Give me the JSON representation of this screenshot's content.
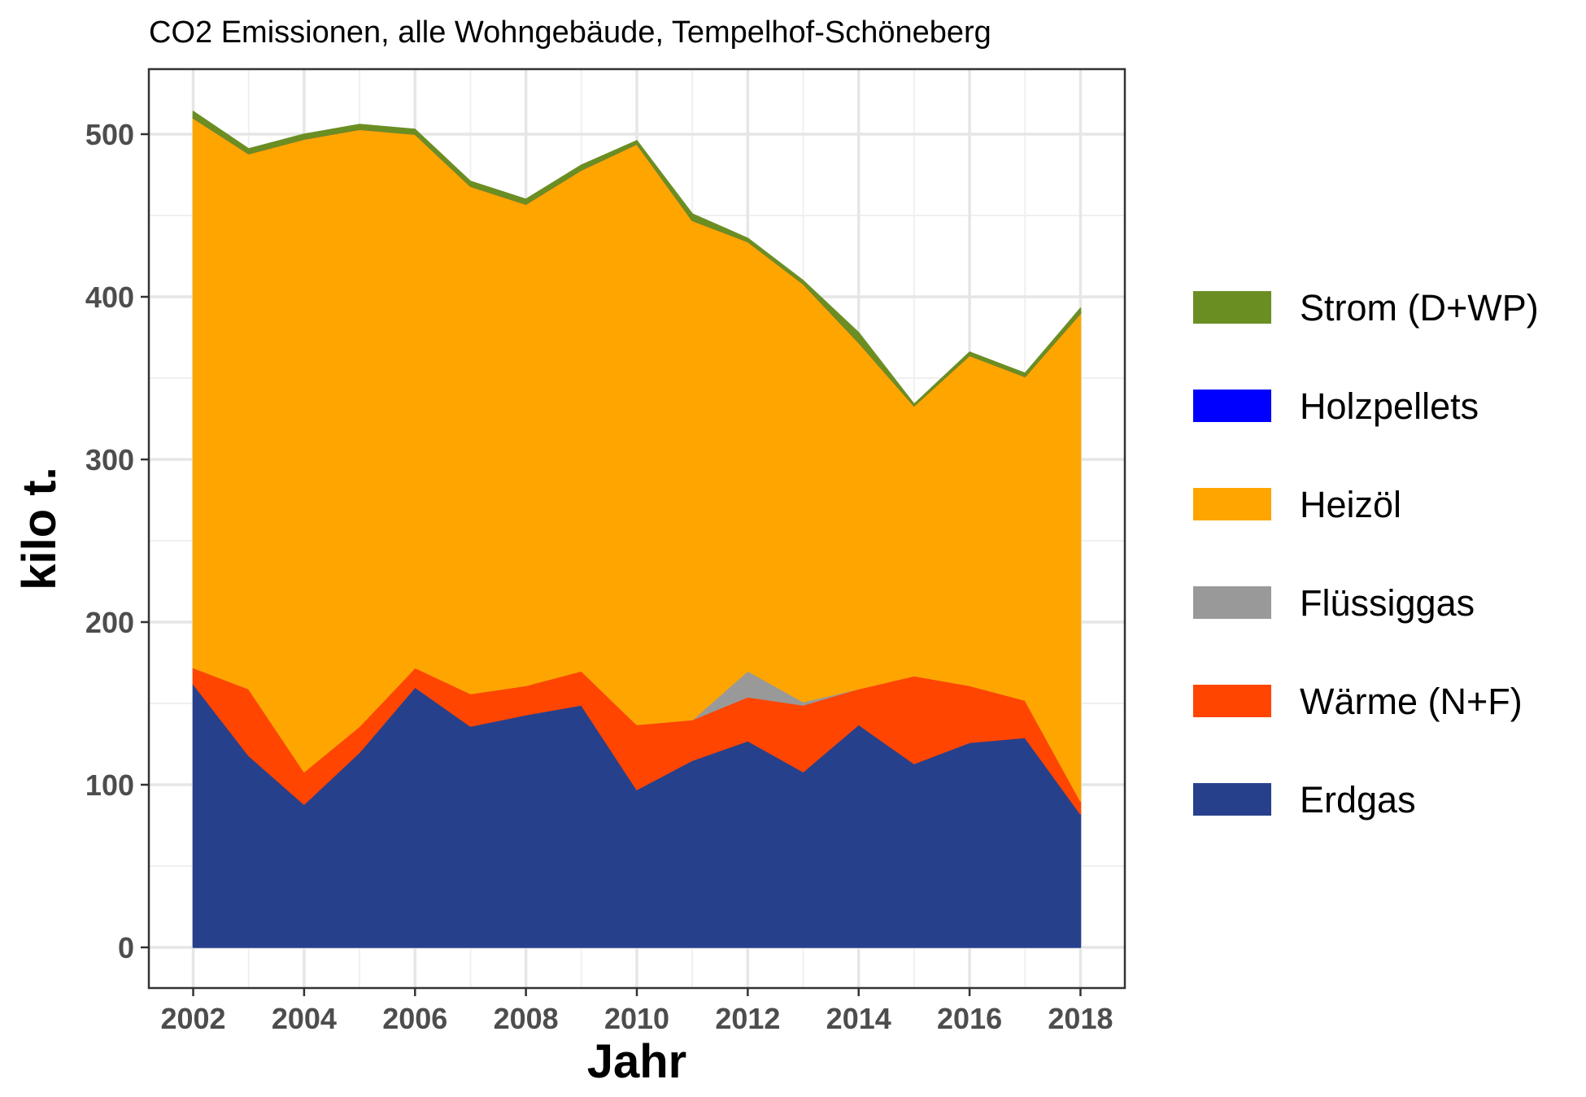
{
  "chart_data": {
    "type": "area",
    "title": "CO2 Emissionen, alle Wohngebäude, Tempelhof-Schöneberg",
    "xlabel": "Jahr",
    "ylabel": "kilo t.",
    "x": [
      2002,
      2003,
      2004,
      2005,
      2006,
      2007,
      2008,
      2009,
      2010,
      2011,
      2012,
      2013,
      2014,
      2015,
      2016,
      2017,
      2018
    ],
    "x_ticks": [
      "2002",
      "2004",
      "2006",
      "2008",
      "2010",
      "2012",
      "2014",
      "2016",
      "2018"
    ],
    "y_ticks": [
      "0",
      "100",
      "200",
      "300",
      "400",
      "500"
    ],
    "ylim": [
      -25,
      540
    ],
    "xlim": [
      2001.2,
      2018.8
    ],
    "grid": true,
    "legend_position": "right",
    "stacking_order": [
      "Erdgas",
      "Wärme (N+F)",
      "Flüssiggas",
      "Heizöl",
      "Holzpellets",
      "Strom (D+WP)"
    ],
    "series": [
      {
        "name": "Strom (D+WP)",
        "color": "#6b8e23",
        "values": [
          4,
          3,
          3,
          3,
          3,
          3,
          3,
          3,
          2,
          4,
          2,
          2,
          6,
          1,
          2,
          2,
          3
        ]
      },
      {
        "name": "Holzpellets",
        "color": "#0000ff",
        "values": [
          0,
          0,
          0,
          0,
          0,
          0,
          0,
          0,
          0,
          0,
          0,
          0,
          0,
          0,
          0,
          0,
          0
        ]
      },
      {
        "name": "Heizöl",
        "color": "#ffa500",
        "values": [
          338,
          329,
          389,
          367,
          328,
          312,
          296,
          308,
          357,
          307,
          264,
          257,
          213,
          166,
          203,
          199,
          300
        ]
      },
      {
        "name": "Flüssiggas",
        "color": "#999999",
        "values": [
          0,
          0,
          0,
          0,
          0,
          0,
          0,
          0,
          0,
          0,
          16,
          2,
          0,
          0,
          0,
          0,
          0
        ]
      },
      {
        "name": "Wärme (N+F)",
        "color": "#ff4500",
        "values": [
          10,
          41,
          20,
          16,
          12,
          20,
          18,
          21,
          40,
          25,
          27,
          41,
          22,
          54,
          35,
          23,
          8
        ]
      },
      {
        "name": "Erdgas",
        "color": "#27408b",
        "values": [
          162,
          118,
          88,
          120,
          160,
          136,
          143,
          149,
          97,
          115,
          127,
          108,
          137,
          113,
          126,
          129,
          82
        ]
      }
    ]
  }
}
